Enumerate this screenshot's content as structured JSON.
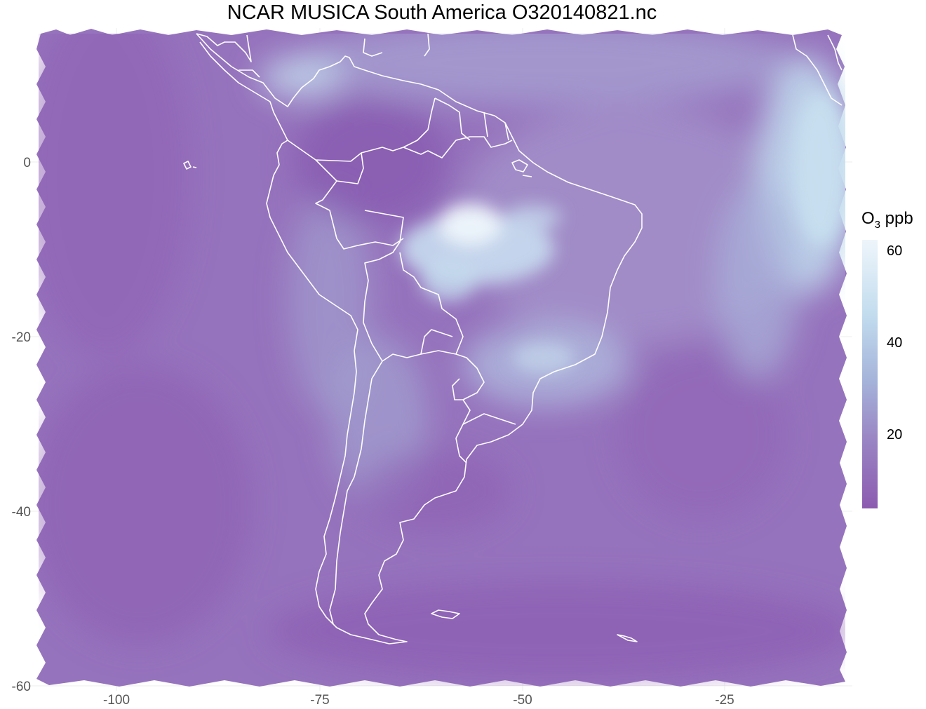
{
  "title": "NCAR MUSICA South America O320140821.nc",
  "legend": {
    "title_main": "O",
    "title_sub": "3",
    "title_unit": " ppb",
    "ticks": [
      "60",
      "40",
      "20"
    ],
    "colors": [
      "#eef5fb",
      "#c2dcee",
      "#a5b4da",
      "#9a86c4",
      "#8c5ab0"
    ]
  },
  "axes": {
    "x_ticks": [
      "-100",
      "-75",
      "-50",
      "-25"
    ],
    "y_ticks": [
      "0",
      "-20",
      "-40",
      "-60"
    ],
    "x_range": [
      -110,
      -12
    ],
    "y_range": [
      -60,
      15
    ]
  }
}
